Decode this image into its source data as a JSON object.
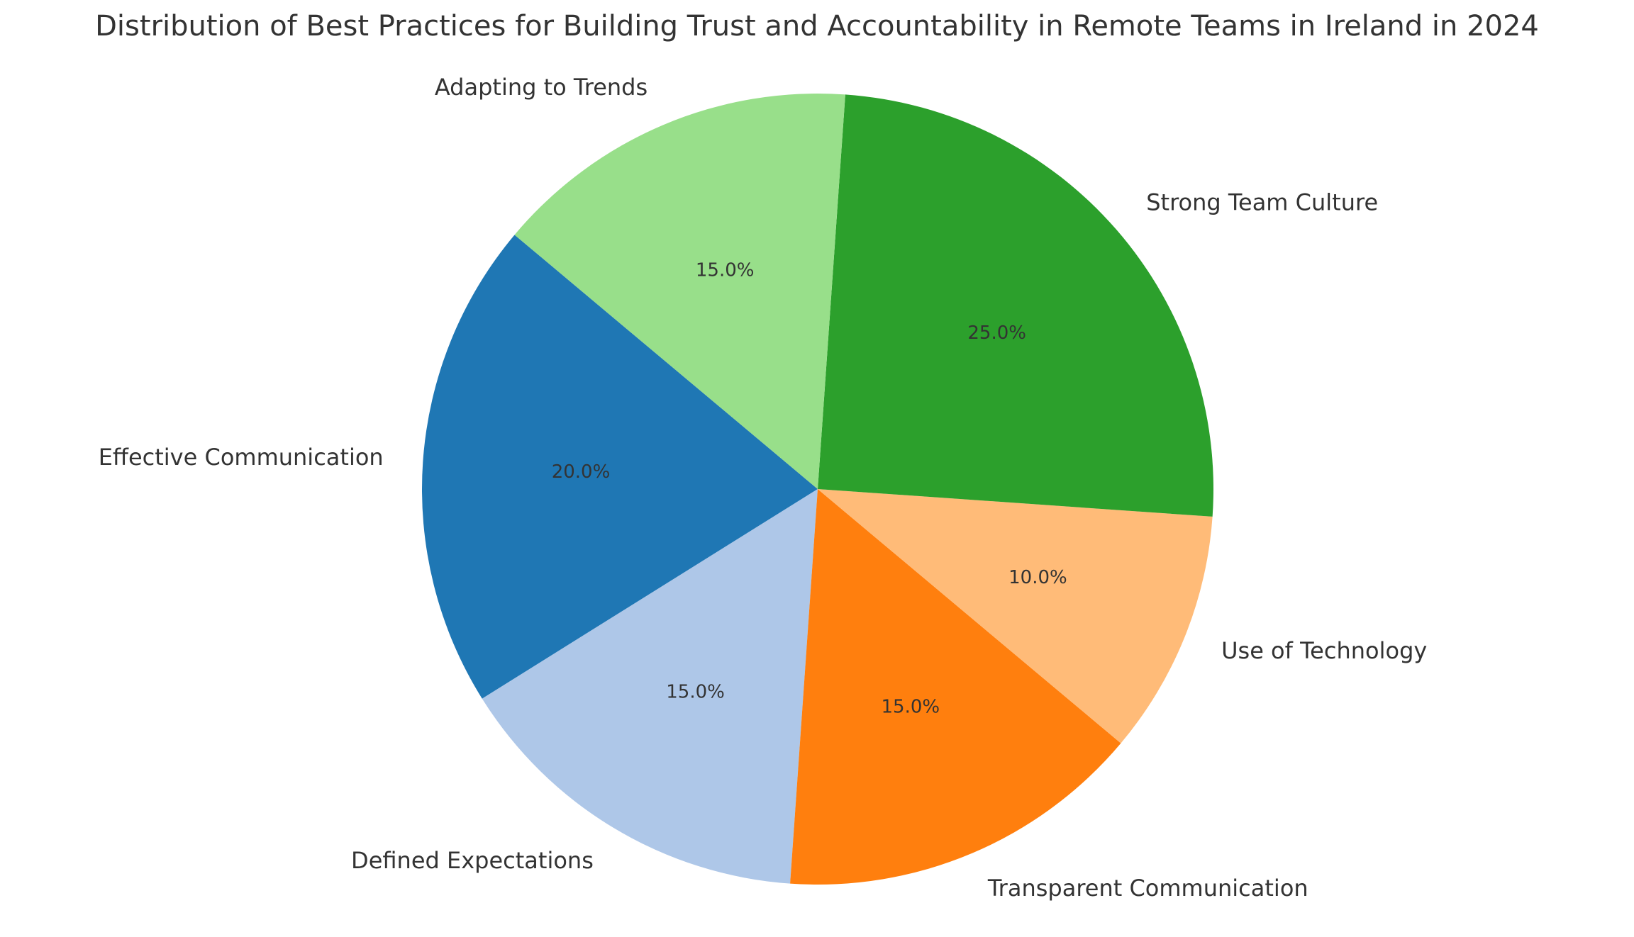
{
  "chart_data": {
    "type": "pie",
    "title": "Distribution of Best Practices for Building Trust and Accountability in Remote Teams in Ireland in 2024",
    "slices": [
      {
        "label": "Effective Communication",
        "value": 20.0,
        "percent_label": "20.0%",
        "color": "#1f77b4"
      },
      {
        "label": "Defined Expectations",
        "value": 15.0,
        "percent_label": "15.0%",
        "color": "#aec7e8"
      },
      {
        "label": "Transparent Communication",
        "value": 15.0,
        "percent_label": "15.0%",
        "color": "#ff7f0e"
      },
      {
        "label": "Use of Technology",
        "value": 10.0,
        "percent_label": "10.0%",
        "color": "#ffbb78"
      },
      {
        "label": "Strong Team Culture",
        "value": 25.0,
        "percent_label": "25.0%",
        "color": "#2ca02c"
      },
      {
        "label": "Adapting to Trends",
        "value": 15.0,
        "percent_label": "15.0%",
        "color": "#98df8a"
      }
    ],
    "start_angle_deg": 140,
    "direction": "counterclockwise",
    "legend": "none"
  }
}
